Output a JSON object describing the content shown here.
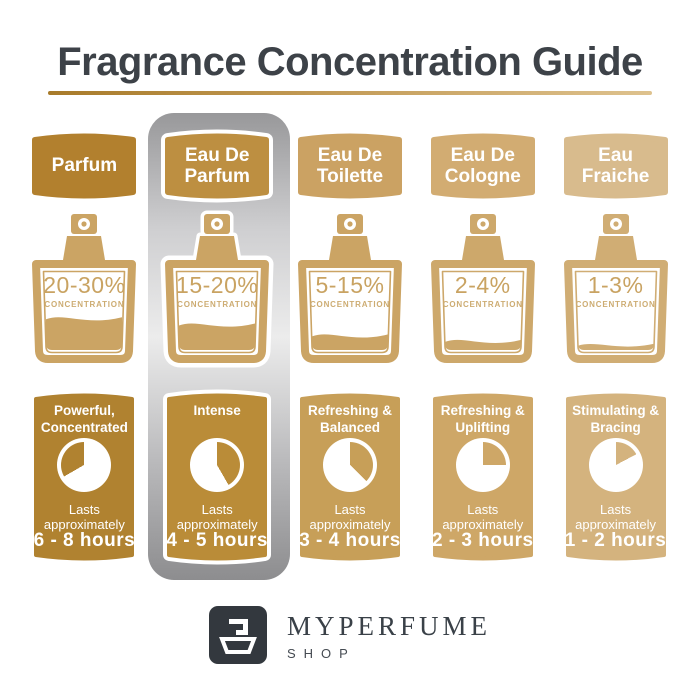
{
  "title": "Fragrance Concentration Guide",
  "underline_colors": [
    "#A87B2A",
    "#DEC28E"
  ],
  "highlight_column_index": 1,
  "highlight_silver_colors": [
    "#98989A",
    "#ECECEC",
    "#8D8D8F"
  ],
  "fragrances": [
    {
      "name": "Parfum",
      "concentration": "20-30%",
      "concentration_label": "CONCENTRATION",
      "fill_percent": 42,
      "character": "Powerful, Concentrated",
      "lasts_label": "Lasts approximately",
      "duration": "6 - 8 hours",
      "clock": {
        "gold_start_deg": 240,
        "gold_end_deg": 360
      },
      "colors": {
        "badge": "#B2802E",
        "card": "#B08230",
        "bottle": "#CBA464"
      }
    },
    {
      "name": "Eau De Parfum",
      "concentration": "15-20%",
      "concentration_label": "CONCENTRATION",
      "fill_percent": 34,
      "character": "Intense",
      "lasts_label": "Lasts approximately",
      "duration": "4 - 5 hours",
      "clock": {
        "gold_start_deg": 0,
        "gold_end_deg": 150
      },
      "colors": {
        "badge": "#BD8F41",
        "card": "#BA8C38",
        "bottle": "#CBA464"
      }
    },
    {
      "name": "Eau De Toilette",
      "concentration": "5-15%",
      "concentration_label": "CONCENTRATION",
      "fill_percent": 20,
      "character": "Refreshing & Balanced",
      "lasts_label": "Lasts approximately",
      "duration": "3 - 4 hours",
      "clock": {
        "gold_start_deg": 0,
        "gold_end_deg": 135
      },
      "colors": {
        "badge": "#CBA263",
        "card": "#C79F58",
        "bottle": "#CBA464"
      }
    },
    {
      "name": "Eau De Cologne",
      "concentration": "2-4%",
      "concentration_label": "CONCENTRATION",
      "fill_percent": 13,
      "character": "Refreshing & Uplifting",
      "lasts_label": "Lasts approximately",
      "duration": "2 - 3 hours",
      "clock": {
        "gold_start_deg": 0,
        "gold_end_deg": 90
      },
      "colors": {
        "badge": "#D2AC72",
        "card": "#CEA767",
        "bottle": "#CDA86B"
      }
    },
    {
      "name": "Eau Fraiche",
      "concentration": "1-3%",
      "concentration_label": "CONCENTRATION",
      "fill_percent": 8,
      "character": "Stimulating & Bracing",
      "lasts_label": "Lasts approximately",
      "duration": "1 - 2 hours",
      "clock": {
        "gold_start_deg": 0,
        "gold_end_deg": 62
      },
      "colors": {
        "badge": "#D8BB8D",
        "card": "#D4B37E",
        "bottle": "#D0AD74"
      }
    }
  ],
  "logo": {
    "brand": "MYPERFUME",
    "sub": "SHOP",
    "icon": "perfume-bottle-logo-icon",
    "mark_color": "#33383E"
  }
}
